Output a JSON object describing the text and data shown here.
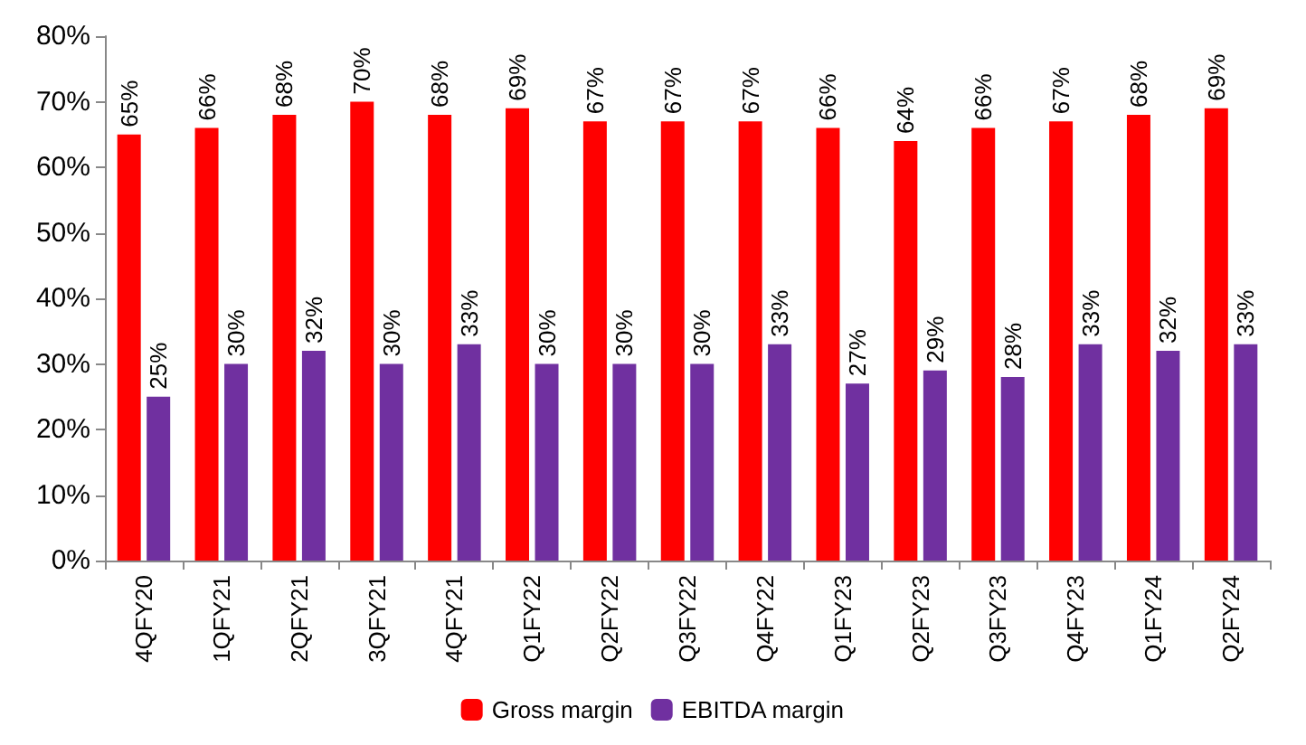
{
  "chart_data": {
    "type": "bar",
    "categories": [
      "4QFY20",
      "1QFY21",
      "2QFY21",
      "3QFY21",
      "4QFY21",
      "Q1FY22",
      "Q2FY22",
      "Q3FY22",
      "Q4FY22",
      "Q1FY23",
      "Q2FY23",
      "Q3FY23",
      "Q4FY23",
      "Q1FY24",
      "Q2FY24"
    ],
    "series": [
      {
        "name": "Gross margin",
        "color": "#ff0000",
        "values": [
          65,
          66,
          68,
          70,
          68,
          69,
          67,
          67,
          67,
          66,
          64,
          66,
          67,
          68,
          69
        ],
        "value_labels": [
          "65%",
          "66%",
          "68%",
          "70%",
          "68%",
          "69%",
          "67%",
          "67%",
          "67%",
          "66%",
          "64%",
          "66%",
          "67%",
          "68%",
          "69%"
        ]
      },
      {
        "name": "EBITDA margin",
        "color": "#7030a0",
        "values": [
          25,
          30,
          32,
          30,
          33,
          30,
          30,
          30,
          33,
          27,
          29,
          28,
          33,
          32,
          33
        ],
        "value_labels": [
          "25%",
          "30%",
          "32%",
          "30%",
          "33%",
          "30%",
          "30%",
          "30%",
          "33%",
          "27%",
          "29%",
          "28%",
          "33%",
          "32%",
          "33%"
        ]
      }
    ],
    "ylim": [
      0,
      80
    ],
    "yticks": [
      {
        "value": 0,
        "label": "0%"
      },
      {
        "value": 10,
        "label": "10%"
      },
      {
        "value": 20,
        "label": "20%"
      },
      {
        "value": 30,
        "label": "30%"
      },
      {
        "value": 40,
        "label": "40%"
      },
      {
        "value": 50,
        "label": "50%"
      },
      {
        "value": 60,
        "label": "60%"
      },
      {
        "value": 70,
        "label": "70%"
      },
      {
        "value": 80,
        "label": "80%"
      }
    ],
    "grid": false,
    "legend": "bottom"
  }
}
